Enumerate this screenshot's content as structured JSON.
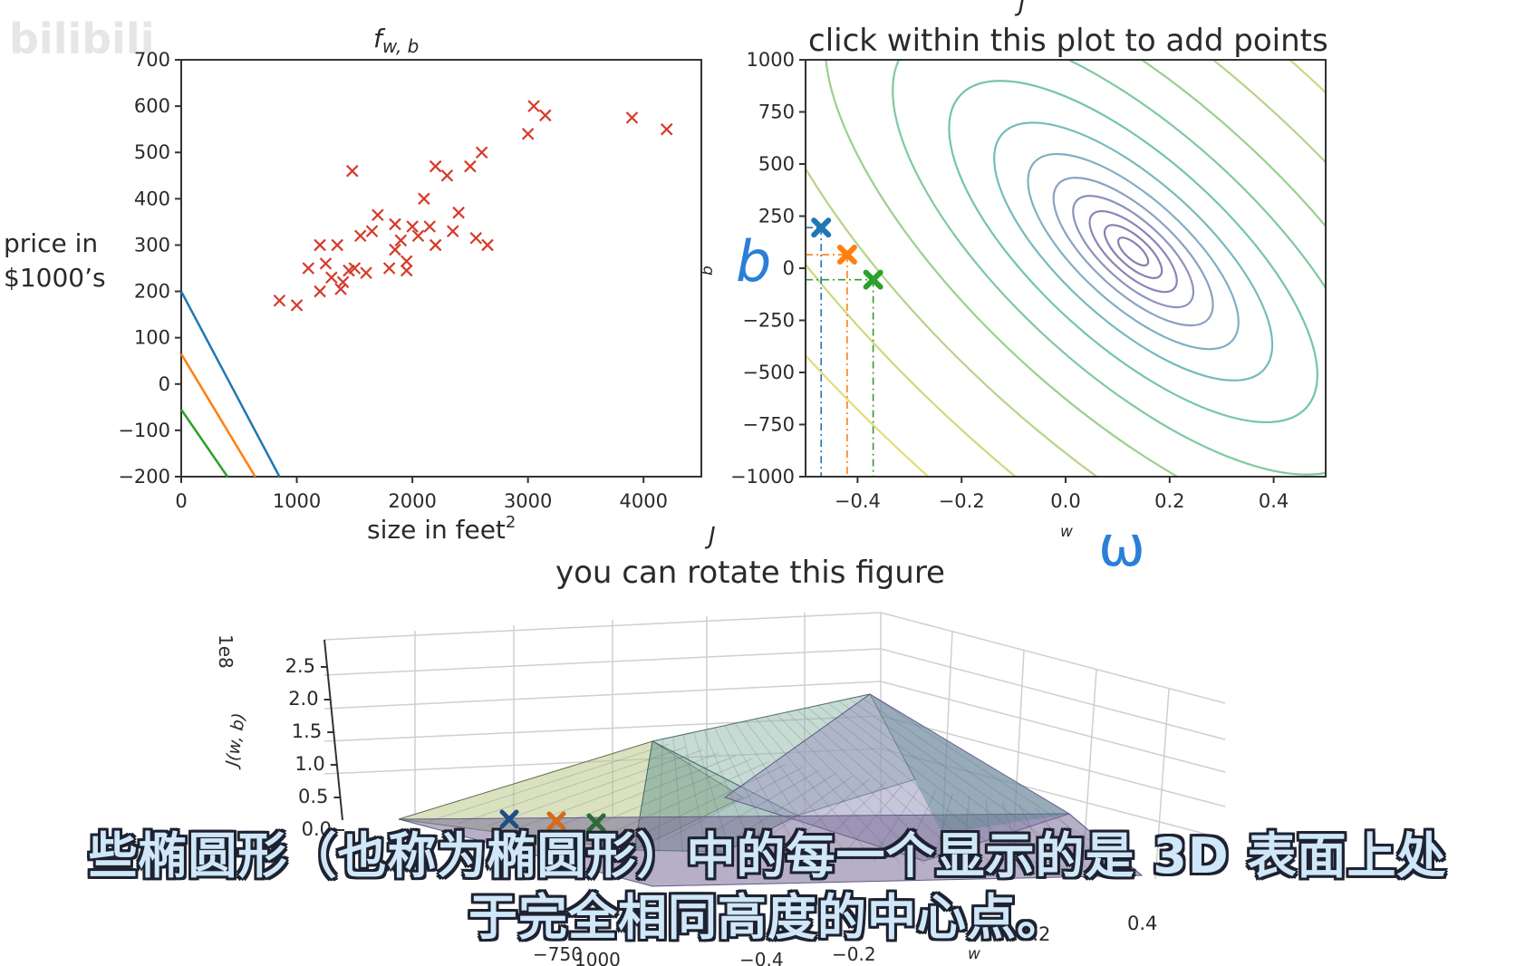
{
  "watermark": "bilibili",
  "chart_data": [
    {
      "type": "line",
      "title": "f_{w,b}",
      "title_main": "f",
      "title_sub": "w, b",
      "xlabel": "size in feet",
      "xlabel_sup": "2",
      "ylabel_line1": "price in",
      "ylabel_line2": "$1000’s",
      "xlim": [
        0,
        4500
      ],
      "ylim": [
        -200,
        700
      ],
      "xticks": [
        "0",
        "1000",
        "2000",
        "3000",
        "4000"
      ],
      "yticks": [
        "700",
        "600",
        "500",
        "400",
        "300",
        "200",
        "100",
        "0",
        "−100",
        "−200"
      ],
      "scatter": {
        "name": "data",
        "color": "#d63a2a",
        "points": [
          [
            850,
            180
          ],
          [
            1000,
            170
          ],
          [
            1100,
            250
          ],
          [
            1200,
            300
          ],
          [
            1250,
            260
          ],
          [
            1300,
            230
          ],
          [
            1350,
            300
          ],
          [
            1400,
            220
          ],
          [
            1450,
            245
          ],
          [
            1480,
            460
          ],
          [
            1500,
            250
          ],
          [
            1550,
            320
          ],
          [
            1600,
            240
          ],
          [
            1650,
            330
          ],
          [
            1700,
            365
          ],
          [
            1800,
            250
          ],
          [
            1850,
            345
          ],
          [
            1850,
            290
          ],
          [
            1900,
            310
          ],
          [
            1950,
            265
          ],
          [
            1950,
            245
          ],
          [
            2000,
            340
          ],
          [
            2050,
            320
          ],
          [
            2100,
            400
          ],
          [
            2150,
            340
          ],
          [
            2200,
            300
          ],
          [
            2200,
            470
          ],
          [
            2300,
            450
          ],
          [
            2350,
            330
          ],
          [
            2400,
            370
          ],
          [
            2500,
            470
          ],
          [
            2550,
            315
          ],
          [
            2600,
            500
          ],
          [
            2650,
            300
          ],
          [
            3000,
            540
          ],
          [
            3050,
            600
          ],
          [
            3150,
            580
          ],
          [
            3900,
            575
          ],
          [
            4200,
            550
          ],
          [
            1200,
            200
          ],
          [
            1380,
            205
          ]
        ]
      },
      "series": [
        {
          "color": "#1f77b4",
          "points": [
            [
              0,
              200
            ],
            [
              850,
              -200
            ]
          ]
        },
        {
          "color": "#ff7f0e",
          "points": [
            [
              0,
              65
            ],
            [
              640,
              -200
            ]
          ]
        },
        {
          "color": "#2ca02c",
          "points": [
            [
              0,
              -55
            ],
            [
              400,
              -200
            ]
          ]
        }
      ]
    },
    {
      "type": "contour",
      "title_top": "J",
      "title": "click within this plot to add points",
      "xlabel": "w",
      "ylabel": "b",
      "xlim": [
        -0.5,
        0.5
      ],
      "ylim": [
        -1000,
        1000
      ],
      "xticks": [
        "−0.4",
        "−0.2",
        "0.0",
        "0.2",
        "0.4"
      ],
      "yticks": [
        "1000",
        "750",
        "500",
        "250",
        "0",
        "−250",
        "−500",
        "−750",
        "−1000"
      ],
      "center": [
        0.13,
        80
      ],
      "markers": [
        {
          "w": -0.47,
          "b": 195,
          "color": "#1f77b4"
        },
        {
          "w": -0.42,
          "b": 65,
          "color": "#ff7f0e"
        },
        {
          "w": -0.37,
          "b": -55,
          "color": "#2ca02c"
        }
      ]
    },
    {
      "type": "surface",
      "title_top": "J",
      "title": "you can rotate this figure",
      "zlabel": "J(w, b)",
      "zscale": "1e8",
      "zticks": [
        "2.5",
        "2.0",
        "1.5",
        "1.0",
        "0.5",
        "0.0"
      ],
      "wticks": [
        "0.4",
        "0.2"
      ],
      "wlabel": "w",
      "bticks": [
        "−750",
        "1000"
      ],
      "bticks_extra": [
        "−0.2",
        "−0.4"
      ]
    }
  ],
  "annotations": {
    "b_hand": "b",
    "w_hand": "ω"
  },
  "subtitle": {
    "line1": "些椭圆形（也称为椭圆形）中的每一个显示的是 3D 表面上处",
    "line2": "于完全相同高度的中心点。"
  }
}
